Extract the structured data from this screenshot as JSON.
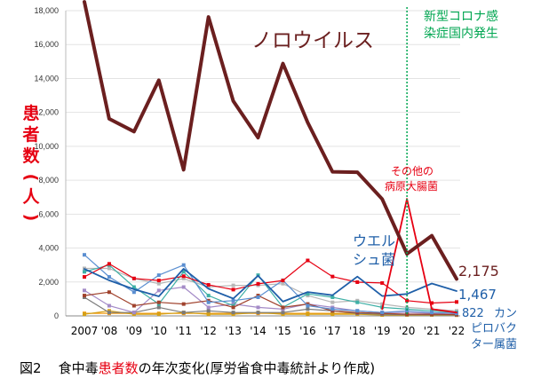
{
  "caption": {
    "number": "図2",
    "pre": "食中毒",
    "highlight": "患者数",
    "post": "の年次変化(厚労省食中毒統計より作成)"
  },
  "annotations": {
    "covid_line1": "新型コロナ感",
    "covid_line2": "染症国内発生",
    "norovirus": "ノロウイルス",
    "other_line1": "その他の",
    "other_line2": "病原大腸菌",
    "welch_line1": "ウエル",
    "welch_line2": "シュ菌",
    "value_norovirus": "2,175",
    "value_welch": "1,467",
    "value_campy": "822",
    "campy_line1": "カン",
    "campy_line2": "ピロバク",
    "campy_line3": "ター属菌"
  },
  "chart_data": {
    "type": "line",
    "title": "",
    "ylabel_chars": [
      "患",
      "者",
      "数",
      "(",
      "人",
      ")"
    ],
    "ylim": [
      0,
      18000
    ],
    "yticks": [
      0,
      2000,
      4000,
      6000,
      8000,
      10000,
      12000,
      14000,
      16000,
      18000
    ],
    "ytick_labels": [
      "0",
      "2,000",
      "4,000",
      "6,000",
      "8,000",
      "10,000",
      "12,000",
      "14,000",
      "16,000",
      "18,000"
    ],
    "x": [
      2007,
      2008,
      2009,
      2010,
      2011,
      2012,
      2013,
      2014,
      2015,
      2016,
      2017,
      2018,
      2019,
      2020,
      2021,
      2022
    ],
    "xtick_labels": [
      "2007",
      "'08",
      "'09",
      "'10",
      "'11",
      "'12",
      "'13",
      "'14",
      "'15",
      "'16",
      "'17",
      "'18",
      "'19",
      "'20",
      "'21",
      "'22"
    ],
    "vline_x": 2020,
    "series": [
      {
        "name": "ノロウイルス",
        "color": "#6b1f1f",
        "width": 4,
        "values": [
          18520,
          11620,
          10870,
          13900,
          8620,
          17630,
          12670,
          10510,
          14880,
          11400,
          8500,
          8470,
          6890,
          3660,
          4730,
          2175
        ]
      },
      {
        "name": "その他の病原大腸菌",
        "color": "#e60012",
        "width": 1.8,
        "values": [
          null,
          null,
          null,
          null,
          null,
          null,
          null,
          null,
          null,
          null,
          null,
          null,
          400,
          6900,
          400,
          200
        ]
      },
      {
        "name": "ウエルシュ菌",
        "color": "#1f5fa8",
        "width": 1.8,
        "values": [
          2770,
          2100,
          1570,
          1150,
          2780,
          1600,
          1020,
          2370,
          840,
          1410,
          1220,
          2320,
          1170,
          1290,
          1910,
          1467
        ]
      },
      {
        "name": "カンピロバクター属菌",
        "color": "#e60012",
        "width": 1.2,
        "values": [
          2300,
          3070,
          2210,
          2090,
          2340,
          1830,
          1550,
          1890,
          2090,
          3270,
          2320,
          1990,
          1940,
          900,
          760,
          822
        ]
      },
      {
        "name": "",
        "color": "#5b8fd1",
        "width": 1.2,
        "values": [
          3600,
          2300,
          1400,
          2400,
          3000,
          800,
          900,
          1100,
          2100,
          600,
          400,
          300,
          200,
          300,
          200,
          150
        ]
      },
      {
        "name": "",
        "color": "#a0422d",
        "width": 1.2,
        "values": [
          1200,
          1400,
          600,
          800,
          700,
          900,
          500,
          1200,
          500,
          700,
          300,
          200,
          150,
          100,
          100,
          80
        ]
      },
      {
        "name": "",
        "color": "#3fb0a6",
        "width": 1.2,
        "values": [
          2600,
          3000,
          1700,
          700,
          2600,
          1200,
          600,
          2400,
          500,
          1300,
          1100,
          800,
          500,
          400,
          300,
          200
        ]
      },
      {
        "name": "",
        "color": "#a48bc7",
        "width": 1.2,
        "values": [
          1500,
          600,
          200,
          1500,
          1700,
          500,
          700,
          500,
          400,
          700,
          500,
          300,
          200,
          200,
          150,
          100
        ]
      },
      {
        "name": "",
        "color": "#b7b7b7",
        "width": 1.2,
        "values": [
          2800,
          2800,
          2200,
          1900,
          2200,
          1700,
          1800,
          1800,
          1900,
          1200,
          800,
          900,
          700,
          500,
          400,
          300
        ]
      },
      {
        "name": "",
        "color": "#7a7a7a",
        "width": 1.2,
        "values": [
          1100,
          200,
          200,
          500,
          200,
          300,
          200,
          200,
          200,
          400,
          300,
          150,
          100,
          80,
          80,
          60
        ]
      },
      {
        "name": "",
        "color": "#d4a017",
        "width": 1.2,
        "values": [
          100,
          300,
          100,
          100,
          200,
          100,
          100,
          200,
          100,
          100,
          100,
          100,
          50,
          50,
          50,
          40
        ]
      },
      {
        "name": "",
        "color": "#f39c12",
        "width": 1.2,
        "values": [
          150,
          150,
          150,
          150,
          150,
          150,
          150,
          150,
          150,
          150,
          150,
          150,
          100,
          100,
          100,
          100
        ]
      }
    ]
  }
}
